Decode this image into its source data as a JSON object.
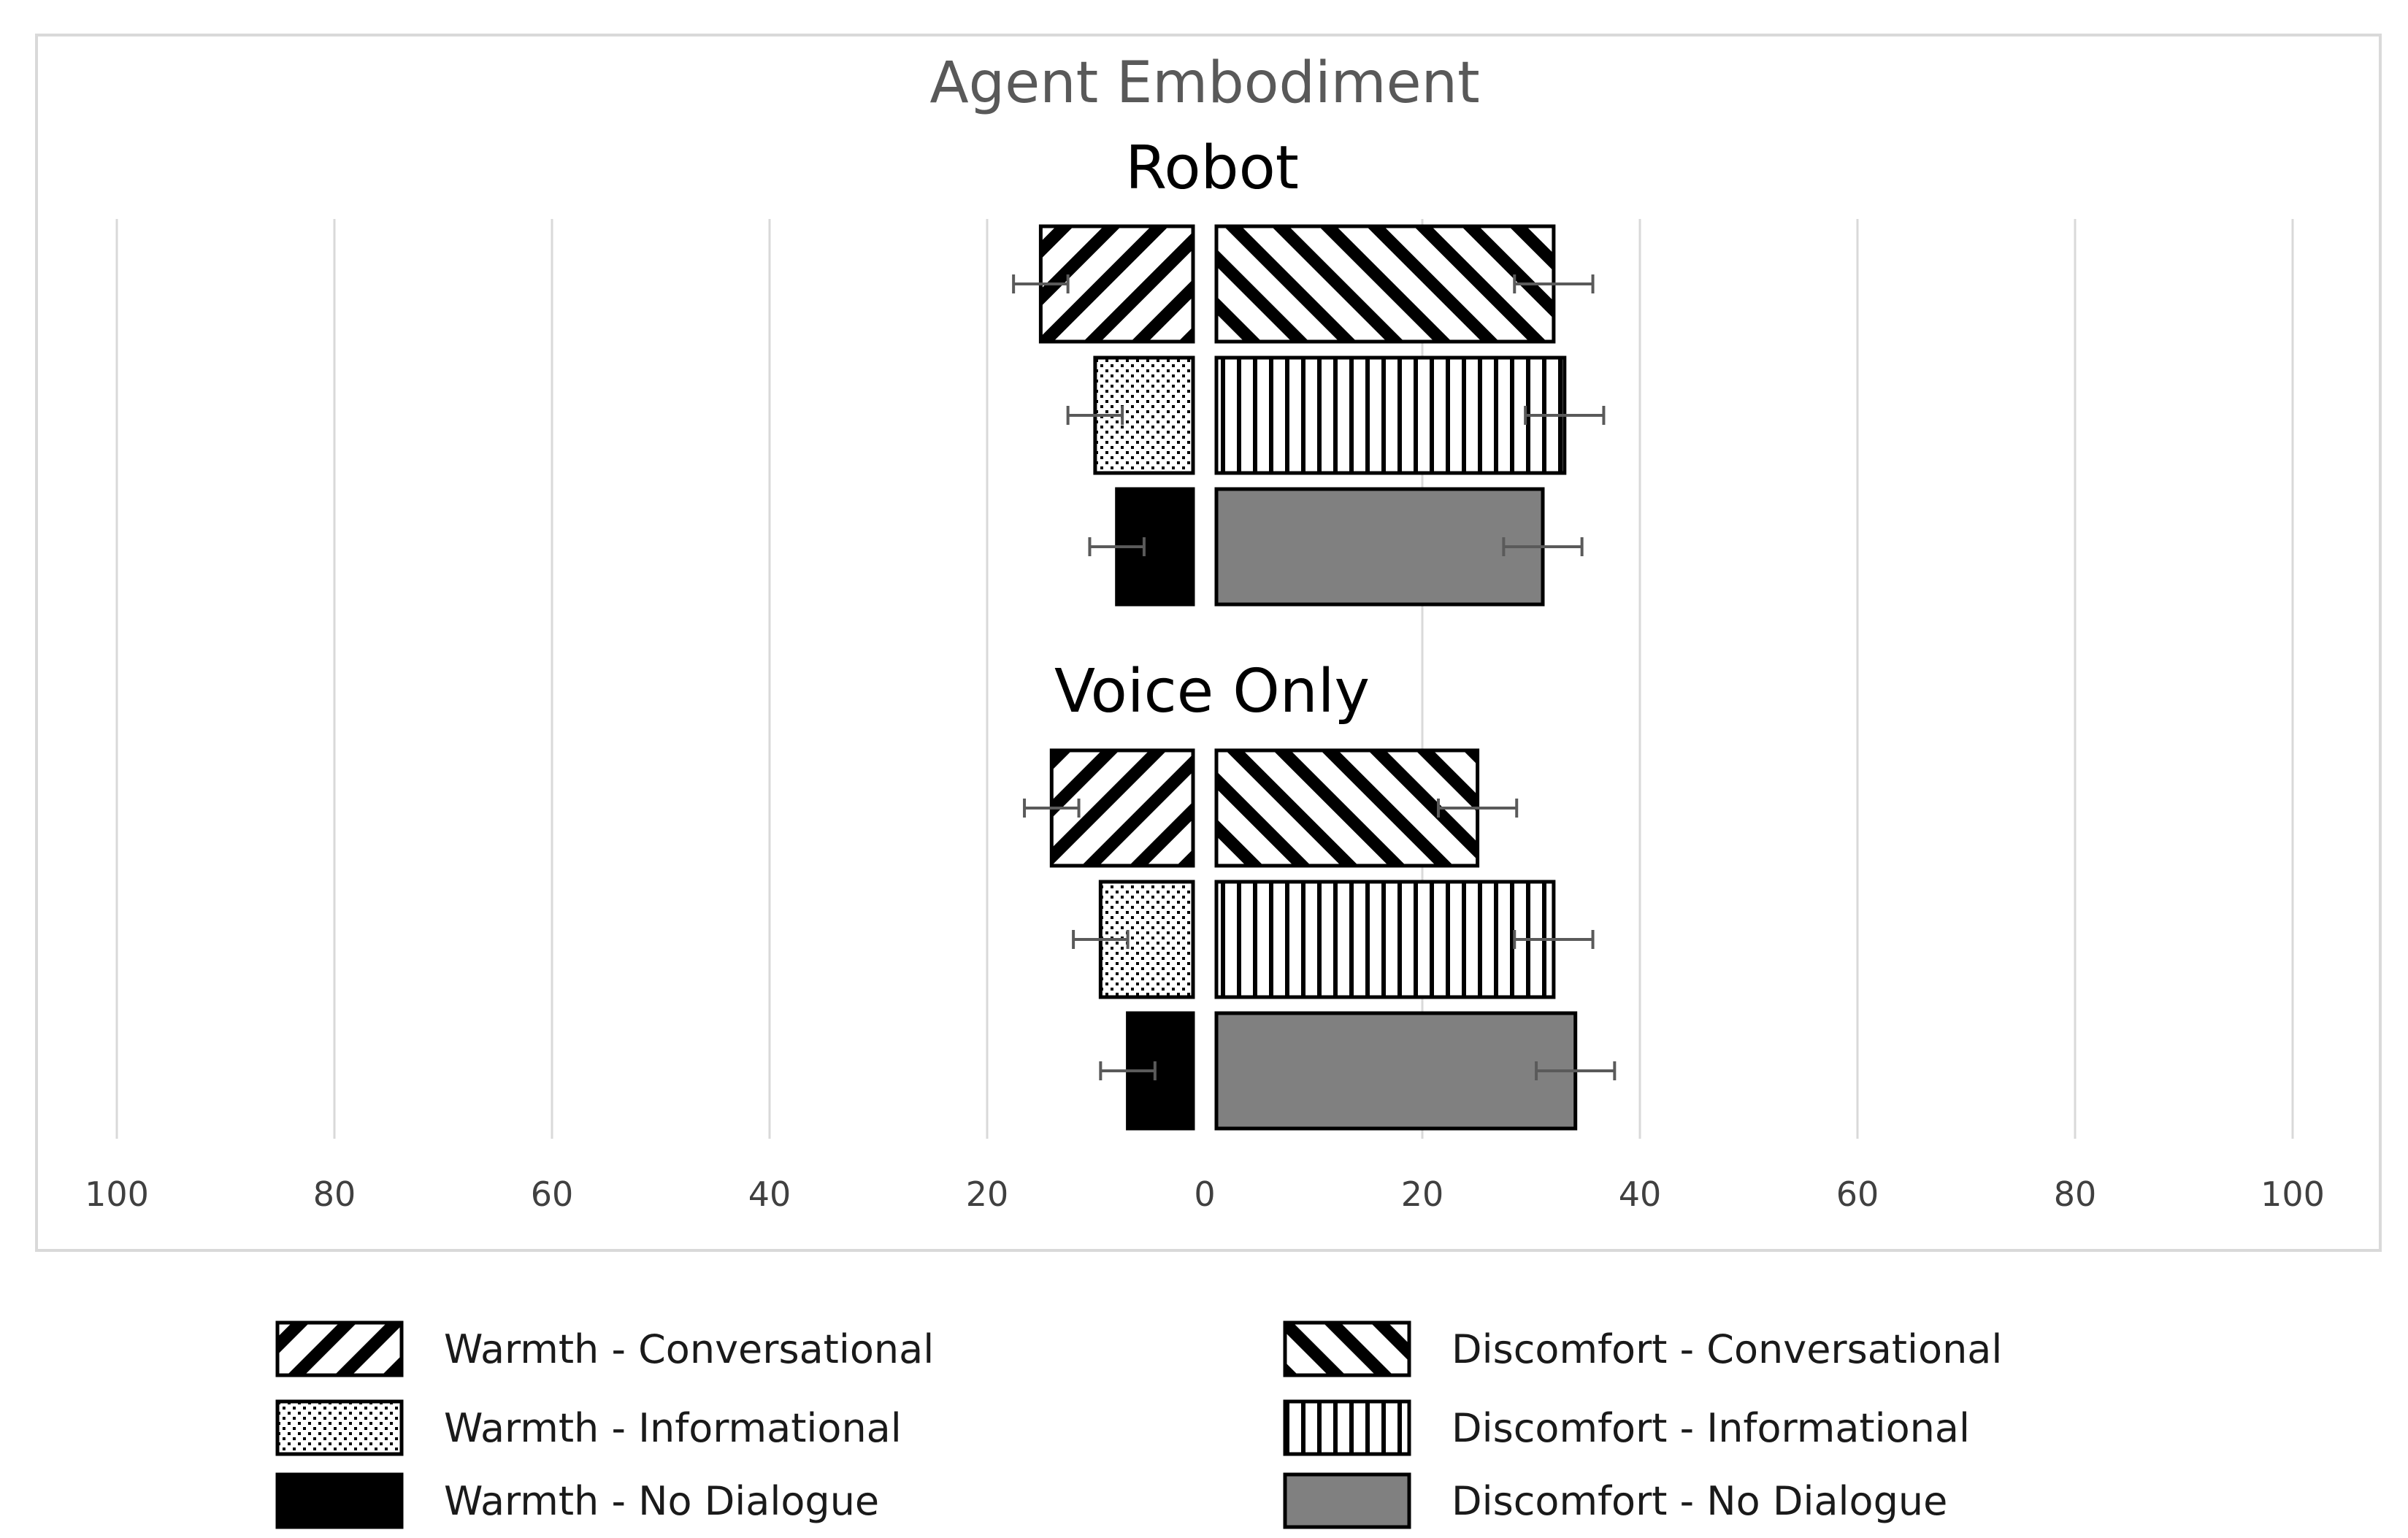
{
  "chart_data": {
    "type": "bar",
    "orientation": "horizontal",
    "layout": "diverging",
    "title": "Agent Embodiment",
    "groups": [
      {
        "label": "Robot",
        "bars": [
          {
            "key": "conv",
            "warmth": 14,
            "warmth_err": 2.5,
            "discomfort": 31,
            "discomfort_err": 3.6
          },
          {
            "key": "info",
            "warmth": 9,
            "warmth_err": 2.5,
            "discomfort": 32,
            "discomfort_err": 3.6
          },
          {
            "key": "none",
            "warmth": 7,
            "warmth_err": 2.5,
            "discomfort": 30,
            "discomfort_err": 3.6
          }
        ]
      },
      {
        "label": "Voice Only",
        "bars": [
          {
            "key": "conv",
            "warmth": 13,
            "warmth_err": 2.5,
            "discomfort": 24,
            "discomfort_err": 3.6
          },
          {
            "key": "info",
            "warmth": 8.5,
            "warmth_err": 2.5,
            "discomfort": 31,
            "discomfort_err": 3.6
          },
          {
            "key": "none",
            "warmth": 6,
            "warmth_err": 2.5,
            "discomfort": 33,
            "discomfort_err": 3.6
          }
        ]
      }
    ],
    "x_ticks": [
      "100",
      "80",
      "60",
      "40",
      "20",
      "0",
      "20",
      "40",
      "60",
      "80",
      "100"
    ],
    "xlim": [
      -100,
      100
    ],
    "grid": true,
    "legend": {
      "placement": "bottom",
      "entries": [
        {
          "label": "Warmth - Conversational",
          "pattern": "diag-left"
        },
        {
          "label": "Discomfort - Conversational",
          "pattern": "diag-right"
        },
        {
          "label": "Warmth - Informational",
          "pattern": "dots"
        },
        {
          "label": "Discomfort - Informational",
          "pattern": "vlines"
        },
        {
          "label": "Warmth - No Dialogue",
          "pattern": "solid-black"
        },
        {
          "label": "Discomfort - No Dialogue",
          "pattern": "solid-gray"
        }
      ]
    },
    "colors": {
      "black": "#000000",
      "gray": "#808080",
      "grid": "#d9d9d9",
      "title": "#595959",
      "tick": "#404040",
      "errorbar": "#5a5a5a"
    }
  }
}
